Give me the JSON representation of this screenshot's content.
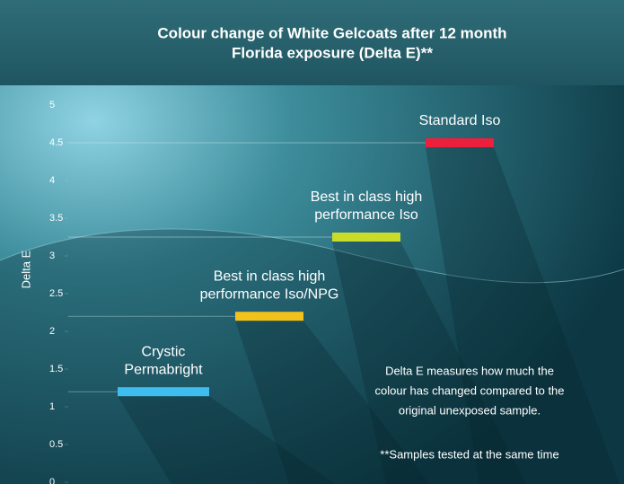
{
  "chart_data": {
    "type": "bar",
    "title": [
      "Colour change of White Gelcoats after 12 month",
      "Florida exposure (Delta E)**"
    ],
    "y_label": "Delta E",
    "categories": [
      [
        "Crystic",
        "Permabright"
      ],
      [
        "Best in class high",
        "performance Iso/NPG"
      ],
      [
        "Best in class high",
        "performance Iso"
      ],
      [
        "Standard Iso"
      ]
    ],
    "values": [
      1.2,
      2.2,
      3.25,
      4.5
    ],
    "colors": [
      "#3fbdf0",
      "#f2c11c",
      "#c9dc2a",
      "#ec1f3c"
    ],
    "ylim": [
      0,
      5
    ],
    "yticks": [
      0,
      0.5,
      1,
      1.5,
      2,
      2.5,
      3,
      3.5,
      4,
      4.5,
      5
    ],
    "annotation": [
      "Delta E measures how much the",
      "colour has changed compared to the",
      "original unexposed sample."
    ],
    "footnote": "**Samples tested at the same time"
  }
}
